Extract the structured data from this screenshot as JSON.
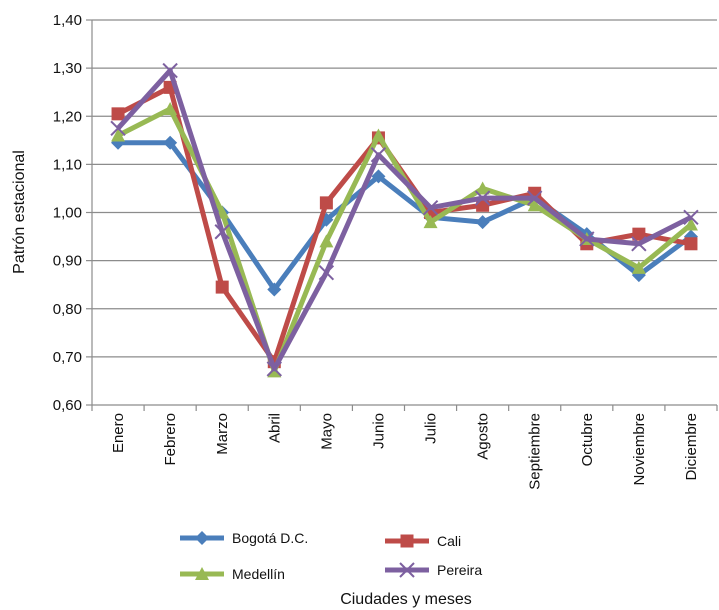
{
  "chart_data": {
    "type": "line",
    "title": "",
    "xlabel": "Ciudades y meses",
    "ylabel": "Patrón estacional",
    "ylim": [
      0.6,
      1.4
    ],
    "yticks": [
      "0,60",
      "0,70",
      "0,80",
      "0,90",
      "1,00",
      "1,10",
      "1,20",
      "1,30",
      "1,40"
    ],
    "grid": "horizontal",
    "legend_position": "bottom",
    "categories": [
      "Enero",
      "Febrero",
      "Marzo",
      "Abril",
      "Mayo",
      "Junio",
      "Julio",
      "Agosto",
      "Septiembre",
      "Octubre",
      "Noviembre",
      "Diciembre"
    ],
    "series": [
      {
        "name": "Bogotá D.C.",
        "color": "#4A7EBB",
        "marker": "diamond",
        "values": [
          1.145,
          1.145,
          1.0,
          0.84,
          0.985,
          1.075,
          0.99,
          0.98,
          1.03,
          0.955,
          0.87,
          0.95
        ]
      },
      {
        "name": "Cali",
        "color": "#BE4B48",
        "marker": "square",
        "values": [
          1.205,
          1.26,
          0.845,
          0.69,
          1.02,
          1.155,
          1.0,
          1.015,
          1.04,
          0.935,
          0.955,
          0.935
        ]
      },
      {
        "name": "Medellín",
        "color": "#98B954",
        "marker": "triangle",
        "values": [
          1.16,
          1.215,
          1.0,
          0.67,
          0.94,
          1.16,
          0.98,
          1.05,
          1.015,
          0.945,
          0.885,
          0.975
        ]
      },
      {
        "name": "Pereira",
        "color": "#7D60A0",
        "marker": "x",
        "values": [
          1.175,
          1.295,
          0.96,
          0.675,
          0.875,
          1.12,
          1.01,
          1.03,
          1.03,
          0.945,
          0.935,
          0.99
        ]
      }
    ]
  }
}
